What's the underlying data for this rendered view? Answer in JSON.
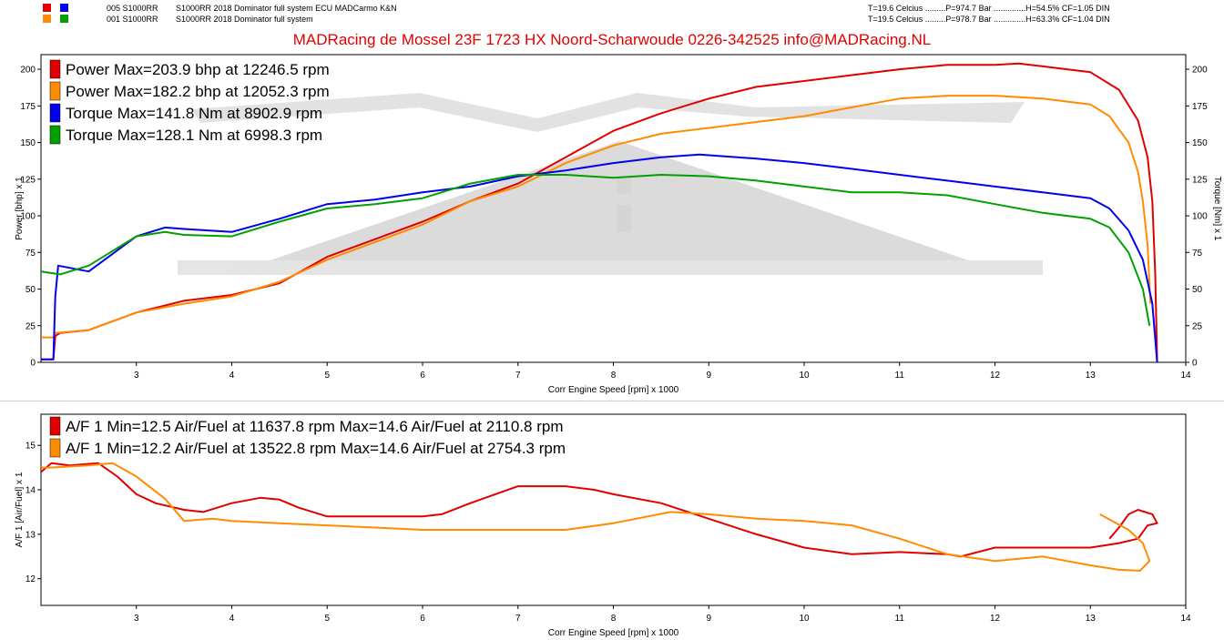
{
  "header": {
    "runs": [
      {
        "id": "005 S1000RR",
        "desc": "S1000RR 2018 Dominator full system ECU MADCarmo K&N",
        "conditions": "T=19.6 Celcius .........P=974.7 Bar ..............H=54.5% CF=1.05 DIN",
        "colors": [
          "#e00000",
          "#0000ee"
        ]
      },
      {
        "id": "001 S1000RR",
        "desc": "S1000RR 2018 Dominator full system",
        "conditions": "T=19.5 Celcius .........P=978.7 Bar ..............H=63.3% CF=1.04 DIN",
        "colors": [
          "#ff8c00",
          "#00a000"
        ]
      }
    ],
    "company": "MADRacing de Mossel 23F 1723 HX Noord-Scharwoude 0226-342525 info@MADRacing.NL"
  },
  "chart_data": [
    {
      "type": "line",
      "xlabel": "Corr Engine Speed [rpm] x 1000",
      "ylabel": "Power [bhp] x 1",
      "ylabel_right": "Torque [Nm] x 1",
      "xlim": [
        2.0,
        14.0
      ],
      "ylim": [
        0,
        210
      ],
      "xticks": [
        "3",
        "4",
        "5",
        "6",
        "7",
        "8",
        "9",
        "10",
        "11",
        "12",
        "13",
        "14"
      ],
      "yticks": [
        "0",
        "25",
        "50",
        "75",
        "100",
        "125",
        "150",
        "175",
        "200"
      ],
      "legend": [
        "Power  Max=203.9 bhp at 12246.5 rpm",
        "Power  Max=182.2 bhp at 12052.3 rpm",
        "Torque  Max=141.8 Nm at 8902.9 rpm",
        "Torque  Max=128.1 Nm at 6998.3 rpm"
      ],
      "series": [
        {
          "name": "Power  Max=203.9 bhp at 12246.5 rpm",
          "color": "#e00000",
          "x": [
            2.0,
            2.13,
            2.15,
            2.2,
            2.5,
            3.0,
            3.5,
            4.0,
            4.5,
            5.0,
            5.5,
            6.0,
            6.5,
            7.0,
            7.5,
            8.0,
            8.5,
            9.0,
            9.5,
            10.0,
            10.5,
            11.0,
            11.5,
            12.0,
            12.25,
            12.5,
            13.0,
            13.3,
            13.5,
            13.6,
            13.65,
            13.68,
            13.7
          ],
          "y": [
            2,
            2,
            18,
            20,
            22,
            34,
            42,
            46,
            54,
            72,
            84,
            96,
            110,
            122,
            140,
            158,
            170,
            180,
            188,
            192,
            196,
            200,
            203,
            203,
            204,
            202,
            198,
            186,
            165,
            140,
            110,
            60,
            0
          ]
        },
        {
          "name": "Power  Max=182.2 bhp at 12052.3 rpm",
          "color": "#ff8c00",
          "x": [
            2.0,
            2.13,
            2.15,
            2.5,
            3.0,
            3.5,
            4.0,
            4.5,
            5.0,
            5.5,
            6.0,
            6.5,
            7.0,
            7.5,
            8.0,
            8.5,
            9.0,
            9.5,
            10.0,
            10.5,
            11.0,
            11.5,
            12.0,
            12.5,
            13.0,
            13.2,
            13.4,
            13.5,
            13.55,
            13.6,
            13.63
          ],
          "y": [
            17,
            17,
            20,
            22,
            34,
            40,
            45,
            55,
            70,
            82,
            94,
            110,
            120,
            136,
            148,
            156,
            160,
            164,
            168,
            174,
            180,
            182,
            182,
            180,
            176,
            168,
            150,
            130,
            110,
            80,
            40
          ]
        },
        {
          "name": "Torque  Max=141.8 Nm at 8902.9 rpm",
          "color": "#0000ee",
          "x": [
            2.0,
            2.13,
            2.15,
            2.18,
            2.5,
            3.0,
            3.3,
            3.5,
            4.0,
            4.5,
            5.0,
            5.5,
            6.0,
            6.5,
            7.0,
            7.5,
            8.0,
            8.5,
            8.9,
            9.5,
            10.0,
            10.5,
            11.0,
            11.5,
            12.0,
            12.5,
            13.0,
            13.2,
            13.4,
            13.55,
            13.65,
            13.7
          ],
          "y": [
            2,
            2,
            45,
            66,
            62,
            86,
            92,
            91,
            89,
            98,
            108,
            111,
            116,
            120,
            127,
            131,
            136,
            140,
            141.8,
            139,
            136,
            132,
            128,
            124,
            120,
            116,
            112,
            105,
            90,
            70,
            40,
            0
          ]
        },
        {
          "name": "Torque  Max=128.1 Nm at 6998.3 rpm",
          "color": "#00a000",
          "x": [
            2.0,
            2.2,
            2.5,
            3.0,
            3.3,
            3.5,
            4.0,
            4.5,
            5.0,
            5.5,
            6.0,
            6.5,
            7.0,
            7.5,
            8.0,
            8.5,
            9.0,
            9.5,
            10.0,
            10.5,
            11.0,
            11.5,
            12.0,
            12.5,
            13.0,
            13.2,
            13.4,
            13.55,
            13.62
          ],
          "y": [
            62,
            60,
            66,
            86,
            89,
            87,
            86,
            96,
            105,
            108,
            112,
            122,
            128,
            128,
            126,
            128,
            127,
            124,
            120,
            116,
            116,
            114,
            108,
            102,
            98,
            92,
            75,
            50,
            25
          ]
        }
      ]
    },
    {
      "type": "line",
      "xlabel": "Corr Engine Speed [rpm] x 1000",
      "ylabel": "A/F 1 [Air/Fuel] x 1",
      "xlim": [
        2.0,
        14.0
      ],
      "ylim": [
        11.4,
        15.7
      ],
      "xticks": [
        "3",
        "4",
        "5",
        "6",
        "7",
        "8",
        "9",
        "10",
        "11",
        "12",
        "13",
        "14"
      ],
      "yticks": [
        "12",
        "13",
        "14",
        "15"
      ],
      "legend": [
        "A/F 1  Min=12.5 Air/Fuel at 11637.8 rpm  Max=14.6 Air/Fuel at 2110.8 rpm",
        "A/F 1  Min=12.2 Air/Fuel at 13522.8 rpm  Max=14.6 Air/Fuel at 2754.3 rpm"
      ],
      "series": [
        {
          "name": "A/F 1  Min=12.5 Air/Fuel at 11637.8 rpm  Max=14.6 Air/Fuel at 2110.8 rpm",
          "color": "#e00000",
          "x": [
            2.0,
            2.11,
            2.3,
            2.6,
            2.8,
            3.0,
            3.2,
            3.5,
            3.7,
            4.0,
            4.3,
            4.5,
            4.7,
            5.0,
            5.3,
            6.0,
            6.2,
            6.5,
            7.0,
            7.5,
            7.8,
            8.0,
            8.5,
            9.0,
            9.5,
            10.0,
            10.5,
            11.0,
            11.5,
            11.64,
            12.0,
            12.5,
            13.0,
            13.3,
            13.5,
            13.6,
            13.7,
            13.65,
            13.5,
            13.4,
            13.3,
            13.2
          ],
          "y": [
            14.4,
            14.6,
            14.55,
            14.6,
            14.3,
            13.9,
            13.7,
            13.55,
            13.5,
            13.7,
            13.82,
            13.78,
            13.6,
            13.4,
            13.4,
            13.4,
            13.45,
            13.7,
            14.08,
            14.08,
            14.0,
            13.9,
            13.7,
            13.35,
            13.0,
            12.7,
            12.55,
            12.6,
            12.55,
            12.5,
            12.7,
            12.7,
            12.7,
            12.8,
            12.9,
            13.2,
            13.25,
            13.45,
            13.55,
            13.45,
            13.15,
            12.9
          ]
        },
        {
          "name": "A/F 1  Min=12.2 Air/Fuel at 13522.8 rpm  Max=14.6 Air/Fuel at 2754.3 rpm",
          "color": "#ff8c00",
          "x": [
            2.0,
            2.1,
            2.5,
            2.75,
            3.0,
            3.3,
            3.5,
            3.8,
            4.0,
            4.5,
            5.0,
            5.5,
            6.0,
            6.5,
            7.0,
            7.5,
            8.0,
            8.6,
            9.0,
            9.5,
            10.0,
            10.5,
            11.0,
            11.5,
            12.0,
            12.5,
            13.0,
            13.3,
            13.52,
            13.62,
            13.55,
            13.4,
            13.1
          ],
          "y": [
            14.5,
            14.5,
            14.55,
            14.6,
            14.3,
            13.8,
            13.3,
            13.35,
            13.3,
            13.25,
            13.2,
            13.15,
            13.1,
            13.1,
            13.1,
            13.1,
            13.25,
            13.5,
            13.45,
            13.35,
            13.3,
            13.2,
            12.9,
            12.55,
            12.4,
            12.5,
            12.3,
            12.2,
            12.18,
            12.4,
            12.8,
            13.1,
            13.45
          ]
        }
      ]
    }
  ]
}
